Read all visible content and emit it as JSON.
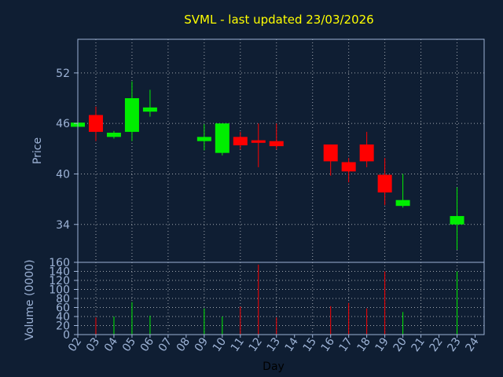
{
  "chart_data": [
    {
      "type": "candlestick",
      "title": "SVML - last updated 23/03/2026",
      "ylabel": "Price",
      "ylim": [
        29.5,
        56
      ],
      "yticks": [
        34,
        40,
        46,
        52
      ],
      "grid": true,
      "colors": {
        "up": "#00ee00",
        "down": "#ff0000",
        "background": "#0f1e33",
        "grid": "#ffffff",
        "axis": "#9db3d6",
        "title": "#ffff00"
      },
      "candles": [
        {
          "day": "02",
          "open": 45.6,
          "high": 46.3,
          "low": 45.3,
          "close": 46.1
        },
        {
          "day": "03",
          "open": 47.0,
          "high": 48.0,
          "low": 43.9,
          "close": 45.0
        },
        {
          "day": "04",
          "open": 44.4,
          "high": 45.1,
          "low": 44.2,
          "close": 44.9
        },
        {
          "day": "05",
          "open": 45.0,
          "high": 51.0,
          "low": 43.9,
          "close": 49.0
        },
        {
          "day": "06",
          "open": 47.4,
          "high": 50.0,
          "low": 46.8,
          "close": 47.9
        },
        {
          "day": "09",
          "open": 43.9,
          "high": 45.9,
          "low": 42.8,
          "close": 44.4
        },
        {
          "day": "10",
          "open": 42.5,
          "high": 46.0,
          "low": 42.2,
          "close": 46.0
        },
        {
          "day": "11",
          "open": 44.4,
          "high": 45.0,
          "low": 42.9,
          "close": 43.4
        },
        {
          "day": "12",
          "open": 44.0,
          "high": 46.0,
          "low": 40.8,
          "close": 43.7
        },
        {
          "day": "13",
          "open": 43.9,
          "high": 46.0,
          "low": 42.9,
          "close": 43.3
        },
        {
          "day": "16",
          "open": 43.5,
          "high": 43.5,
          "low": 39.8,
          "close": 41.5
        },
        {
          "day": "17",
          "open": 41.4,
          "high": 41.9,
          "low": 39.0,
          "close": 40.3
        },
        {
          "day": "18",
          "open": 43.5,
          "high": 45.0,
          "low": 40.8,
          "close": 41.5
        },
        {
          "day": "19",
          "open": 39.9,
          "high": 41.9,
          "low": 36.3,
          "close": 37.8
        },
        {
          "day": "20",
          "open": 36.2,
          "high": 40.0,
          "low": 36.0,
          "close": 36.9
        },
        {
          "day": "23",
          "open": 34.0,
          "high": 38.4,
          "low": 31.0,
          "close": 35.0
        }
      ]
    },
    {
      "type": "bar",
      "ylabel": "Volume (0000)",
      "xlabel": "Day",
      "ylim": [
        0,
        160
      ],
      "yticks": [
        0,
        20,
        40,
        60,
        80,
        100,
        120,
        140,
        160
      ],
      "x_ticks": [
        "02",
        "03",
        "04",
        "05",
        "06",
        "07",
        "08",
        "09",
        "10",
        "11",
        "12",
        "13",
        "14",
        "15",
        "16",
        "17",
        "18",
        "19",
        "20",
        "21",
        "22",
        "23",
        "24"
      ],
      "grid": true,
      "volumes": [
        {
          "day": "03",
          "value": 38,
          "color": "#ff0000"
        },
        {
          "day": "04",
          "value": 40,
          "color": "#00ee00"
        },
        {
          "day": "05",
          "value": 72,
          "color": "#00ee00"
        },
        {
          "day": "06",
          "value": 42,
          "color": "#00ee00"
        },
        {
          "day": "09",
          "value": 58,
          "color": "#00ee00"
        },
        {
          "day": "10",
          "value": 40,
          "color": "#00ee00"
        },
        {
          "day": "11",
          "value": 62,
          "color": "#ff0000"
        },
        {
          "day": "12",
          "value": 155,
          "color": "#ff0000"
        },
        {
          "day": "13",
          "value": 38,
          "color": "#ff0000"
        },
        {
          "day": "16",
          "value": 63,
          "color": "#ff0000"
        },
        {
          "day": "17",
          "value": 70,
          "color": "#ff0000"
        },
        {
          "day": "18",
          "value": 58,
          "color": "#ff0000"
        },
        {
          "day": "19",
          "value": 140,
          "color": "#ff0000"
        },
        {
          "day": "20",
          "value": 50,
          "color": "#00ee00"
        },
        {
          "day": "23",
          "value": 140,
          "color": "#00ee00"
        }
      ]
    }
  ]
}
